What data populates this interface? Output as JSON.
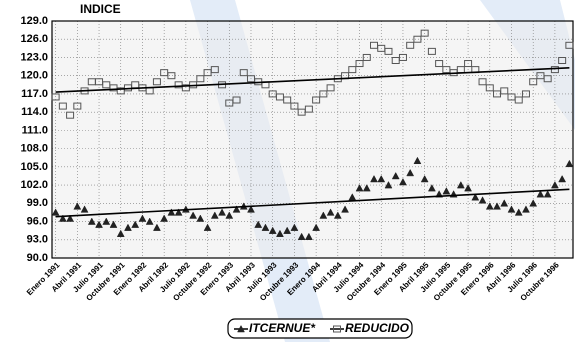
{
  "chart_data": {
    "type": "scatter",
    "title": "INDICE",
    "categories": [
      "Enero 1991",
      null,
      null,
      "Abril 1991",
      null,
      null,
      "Julio 1991",
      null,
      null,
      "Octubre 1991",
      null,
      null,
      "Enero 1992",
      null,
      null,
      "Abril 1992",
      null,
      null,
      "Julio 1992",
      null,
      null,
      "Octubre 1992",
      null,
      null,
      "Enero 1993",
      null,
      null,
      "Abril 1993",
      null,
      null,
      "Julio 1993",
      null,
      null,
      "Octubre 1993",
      null,
      null,
      "Enero 1994",
      null,
      null,
      "Abril 1994",
      null,
      null,
      "Julio 1994",
      null,
      null,
      "Octubre 1994",
      null,
      null,
      "Enero 1995",
      null,
      null,
      "Abril 1995",
      null,
      null,
      "Julio 1995",
      null,
      null,
      "Octubre 1995",
      null,
      null,
      "Enero 1996",
      null,
      null,
      "Abril 1996",
      null,
      null,
      "Julio 1996",
      null,
      null,
      "Octubre 1996",
      null,
      null
    ],
    "series": [
      {
        "name": "ITCERNUE*",
        "color": "#222222",
        "marker": "triangle",
        "values": [
          97.5,
          96.5,
          96.5,
          98.5,
          98,
          96,
          95.5,
          96,
          95.5,
          94,
          95,
          95.5,
          96.5,
          96,
          95,
          96.5,
          97.5,
          97.5,
          98,
          97,
          96.5,
          95,
          97,
          97.5,
          97,
          98,
          98.5,
          98,
          95.5,
          95,
          94.5,
          94,
          94.5,
          95,
          93.5,
          93.5,
          95,
          97,
          97.5,
          97,
          98,
          100,
          101.5,
          101.5,
          103,
          103,
          102,
          103.5,
          102.5,
          104,
          106,
          103,
          101.5,
          100.5,
          101,
          100.5,
          102,
          101.5,
          100,
          99.5,
          98.5,
          98.5,
          99,
          98,
          97.5,
          98,
          99,
          100.5,
          100.5,
          102,
          103,
          105.5
        ]
      },
      {
        "name": "REDUCIDO",
        "color": "#555555",
        "marker": "square",
        "values": [
          116.5,
          115,
          113.5,
          115,
          117.5,
          119,
          119,
          118.5,
          118,
          117.5,
          118,
          118.5,
          118,
          117.5,
          119,
          120.5,
          120,
          118.5,
          118,
          118.5,
          119.5,
          120.5,
          121,
          118.5,
          115.5,
          116,
          120.5,
          119.5,
          119,
          118.5,
          117,
          116.5,
          116,
          115,
          114,
          114.5,
          116,
          117,
          118,
          119.5,
          120,
          121,
          122,
          123,
          125,
          124.5,
          124,
          122.5,
          123,
          125,
          126,
          127,
          124,
          122,
          121,
          120.5,
          121,
          122,
          121,
          119,
          118,
          117,
          117.5,
          116.5,
          116,
          117,
          119,
          120,
          119.5,
          121,
          122.5,
          125
        ]
      }
    ],
    "trendlines": [
      {
        "values": [
          96.8,
          101.3
        ]
      },
      {
        "values": [
          117.3,
          121.3
        ]
      }
    ],
    "ylim": [
      90,
      129
    ],
    "yticks": [
      {
        "value": 90,
        "label": "90.0"
      },
      {
        "value": 93,
        "label": "93.0"
      },
      {
        "value": 96,
        "label": "96.0"
      },
      {
        "value": 99,
        "label": "99.0"
      },
      {
        "value": 102,
        "label": "102.0"
      },
      {
        "value": 105,
        "label": "105.0"
      },
      {
        "value": 108,
        "label": "108.0"
      },
      {
        "value": 111,
        "label": "111.0"
      },
      {
        "value": 114,
        "label": "114.0"
      },
      {
        "value": 117,
        "label": "117.0"
      },
      {
        "value": 120,
        "label": "120.0"
      },
      {
        "value": 123,
        "label": "123.0"
      },
      {
        "value": 126,
        "label": "126.0"
      },
      {
        "value": 129,
        "label": "129.0"
      }
    ],
    "grid": true,
    "legend": "bottom"
  }
}
